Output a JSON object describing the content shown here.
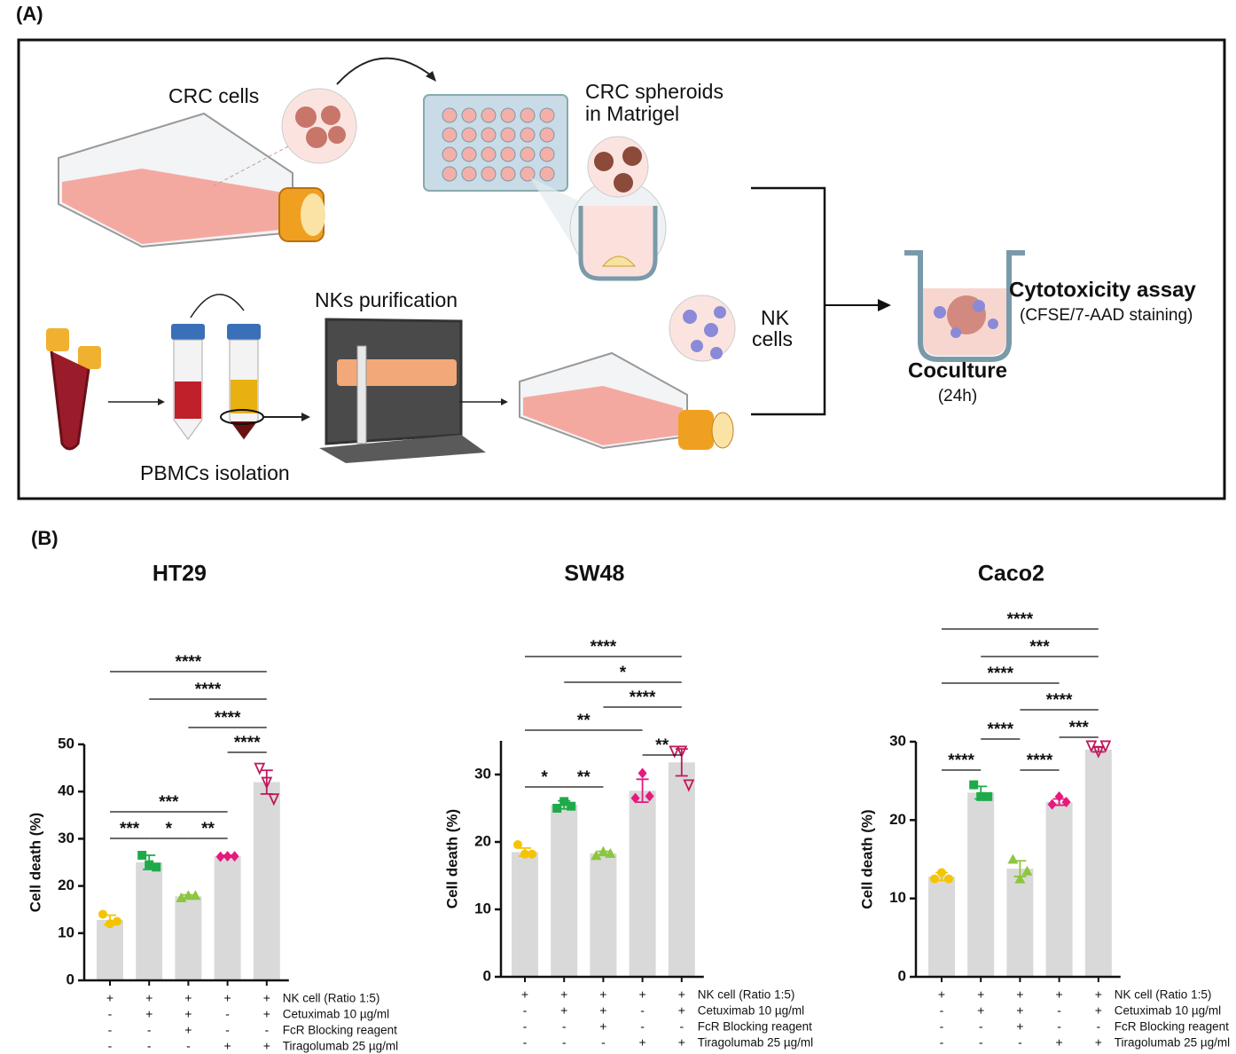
{
  "panel_a": {
    "label": "(A)",
    "crc_cells": "CRC cells",
    "spheroids_1": "CRC spheroids",
    "spheroids_2": "in Matrigel",
    "nk_purification": "NKs purification",
    "nk_1": "NK",
    "nk_2": "cells",
    "cytotoxicity": "Cytotoxicity assay",
    "staining": "(CFSE/7-AAD staining)",
    "coculture": "Coculture",
    "hours": "(24h)",
    "pbmc": "PBMCs isolation"
  },
  "panel_b": {
    "label": "(B)"
  },
  "chart_data": [
    {
      "type": "bar",
      "title": "HT29",
      "y_label": "Cell death (%)",
      "values": [
        12.8,
        25,
        17.8,
        26.3,
        42
      ],
      "errors": [
        1,
        1.5,
        0.3,
        0.2,
        2.5
      ],
      "points": [
        [
          14,
          12,
          12.5
        ],
        [
          26.5,
          24.5,
          24
        ],
        [
          17.5,
          18,
          18
        ],
        [
          26.2,
          26.3,
          26.3
        ],
        [
          45,
          42,
          38.5
        ]
      ],
      "color": "#d9d9d9",
      "point_colors": [
        "#f5c400",
        "#1faa4a",
        "#8cc63f",
        "#e6197d",
        "#c0185c"
      ],
      "ylim": [
        0,
        50
      ],
      "yticks": [
        0,
        10,
        20,
        30,
        40,
        50
      ],
      "brackets": [
        {
          "from": 0,
          "to": 1,
          "label": "***"
        },
        {
          "from": 1,
          "to": 2,
          "label": "*"
        },
        {
          "from": 2,
          "to": 3,
          "label": "**"
        },
        {
          "from": 0,
          "to": 3,
          "label": "***"
        },
        {
          "from": 3,
          "to": 4,
          "label": "****"
        },
        {
          "from": 2,
          "to": 4,
          "label": "****"
        },
        {
          "from": 1,
          "to": 4,
          "label": "****"
        },
        {
          "from": 0,
          "to": 4,
          "label": "****"
        }
      ],
      "conditions": [
        {
          "label": "NK cell (Ratio 1:5)",
          "signs": [
            "+",
            "+",
            "+",
            "+",
            "+"
          ]
        },
        {
          "label": "Cetuximab 10 µg/ml",
          "signs": [
            "-",
            "+",
            "+",
            "-",
            "+"
          ]
        },
        {
          "label": "FcR Blocking reagent",
          "signs": [
            "-",
            "-",
            "+",
            "-",
            "-"
          ]
        },
        {
          "label": "Tiragolumab 25 µg/ml",
          "signs": [
            "-",
            "-",
            "-",
            "+",
            "+"
          ]
        }
      ]
    },
    {
      "type": "bar",
      "title": "SW48",
      "y_label": "Cell death (%)",
      "values": [
        18.5,
        25.5,
        18.3,
        27.6,
        31.8
      ],
      "errors": [
        0.6,
        0.6,
        0.3,
        1.7,
        2
      ],
      "points": [
        [
          19.6,
          18.2,
          18.2
        ],
        [
          25,
          26,
          25.3
        ],
        [
          18,
          18.6,
          18.3
        ],
        [
          26.5,
          30.2,
          26.8
        ],
        [
          33.5,
          33.5,
          28.5
        ]
      ],
      "color": "#d9d9d9",
      "point_colors": [
        "#f5c400",
        "#1faa4a",
        "#8cc63f",
        "#e6197d",
        "#c0185c"
      ],
      "ylim": [
        0,
        35
      ],
      "yticks": [
        0,
        10,
        20,
        30
      ],
      "brackets": [
        {
          "from": 0,
          "to": 1,
          "label": "*"
        },
        {
          "from": 1,
          "to": 2,
          "label": "**"
        },
        {
          "from": 3,
          "to": 4,
          "label": "**"
        },
        {
          "from": 0,
          "to": 3,
          "label": "**"
        },
        {
          "from": 2,
          "to": 4,
          "label": "****"
        },
        {
          "from": 1,
          "to": 4,
          "label": "*"
        },
        {
          "from": 0,
          "to": 4,
          "label": "****"
        }
      ],
      "conditions": [
        {
          "label": "NK cell (Ratio 1:5)",
          "signs": [
            "+",
            "+",
            "+",
            "+",
            "+"
          ]
        },
        {
          "label": "Cetuximab 10 µg/ml",
          "signs": [
            "-",
            "+",
            "+",
            "-",
            "+"
          ]
        },
        {
          "label": "FcR Blocking reagent",
          "signs": [
            "-",
            "-",
            "+",
            "-",
            "-"
          ]
        },
        {
          "label": "Tiragolumab 25 µg/ml",
          "signs": [
            "-",
            "-",
            "-",
            "+",
            "+"
          ]
        }
      ]
    },
    {
      "type": "bar",
      "title": "Caco2",
      "y_label": "Cell death (%)",
      "values": [
        12.8,
        23.5,
        13.8,
        22.3,
        29
      ],
      "errors": [
        0.5,
        0.8,
        1,
        0.4,
        0.3
      ],
      "points": [
        [
          12.5,
          13.3,
          12.5
        ],
        [
          24.5,
          23,
          23
        ],
        [
          15,
          12.5,
          13.5
        ],
        [
          22,
          23,
          22.3
        ],
        [
          29.5,
          28.8,
          29.5
        ]
      ],
      "color": "#d9d9d9",
      "point_colors": [
        "#f5c400",
        "#1faa4a",
        "#8cc63f",
        "#e6197d",
        "#c0185c"
      ],
      "ylim": [
        0,
        30
      ],
      "yticks": [
        0,
        10,
        20,
        30
      ],
      "brackets": [
        {
          "from": 0,
          "to": 1,
          "label": "****"
        },
        {
          "from": 1,
          "to": 2,
          "label": "****"
        },
        {
          "from": 2,
          "to": 3,
          "label": "****"
        },
        {
          "from": 3,
          "to": 4,
          "label": "***"
        },
        {
          "from": 2,
          "to": 4,
          "label": "****"
        },
        {
          "from": 0,
          "to": 3,
          "label": "****"
        },
        {
          "from": 1,
          "to": 4,
          "label": "***"
        },
        {
          "from": 0,
          "to": 4,
          "label": "****"
        }
      ],
      "conditions": [
        {
          "label": "NK cell (Ratio 1:5)",
          "signs": [
            "+",
            "+",
            "+",
            "+",
            "+"
          ]
        },
        {
          "label": "Cetuximab 10 µg/ml",
          "signs": [
            "-",
            "+",
            "+",
            "-",
            "+"
          ]
        },
        {
          "label": "FcR Blocking reagent",
          "signs": [
            "-",
            "-",
            "+",
            "-",
            "-"
          ]
        },
        {
          "label": "Tiragolumab 25 µg/ml",
          "signs": [
            "-",
            "-",
            "-",
            "+",
            "+"
          ]
        }
      ]
    }
  ]
}
